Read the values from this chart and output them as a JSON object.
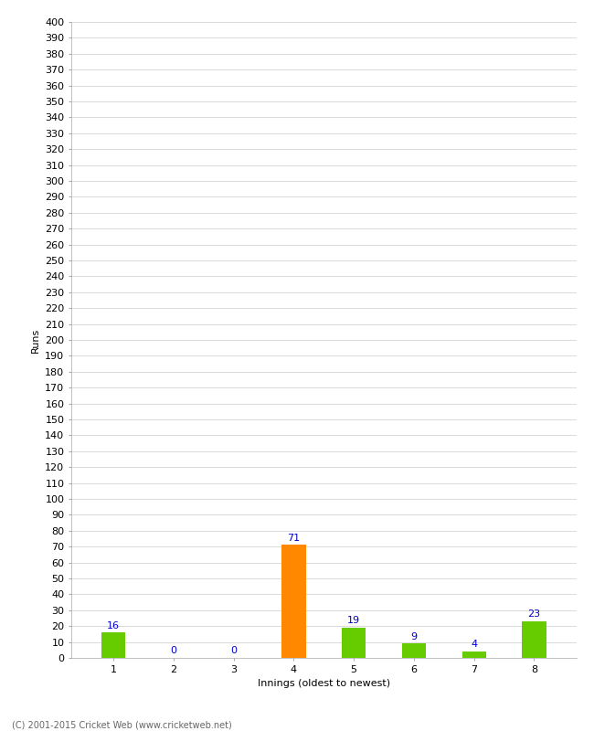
{
  "categories": [
    "1",
    "2",
    "3",
    "4",
    "5",
    "6",
    "7",
    "8"
  ],
  "values": [
    16,
    0,
    0,
    71,
    19,
    9,
    4,
    23
  ],
  "bar_colors": [
    "#66cc00",
    "#66cc00",
    "#66cc00",
    "#ff8800",
    "#66cc00",
    "#66cc00",
    "#66cc00",
    "#66cc00"
  ],
  "xlabel": "Innings (oldest to newest)",
  "ylabel": "Runs",
  "ylim": [
    0,
    400
  ],
  "label_color": "#0000cc",
  "label_fontsize": 8,
  "axis_fontsize": 8,
  "tick_fontsize": 8,
  "footer": "(C) 2001-2015 Cricket Web (www.cricketweb.net)",
  "background_color": "#ffffff",
  "grid_color": "#cccccc",
  "bar_width": 0.4
}
